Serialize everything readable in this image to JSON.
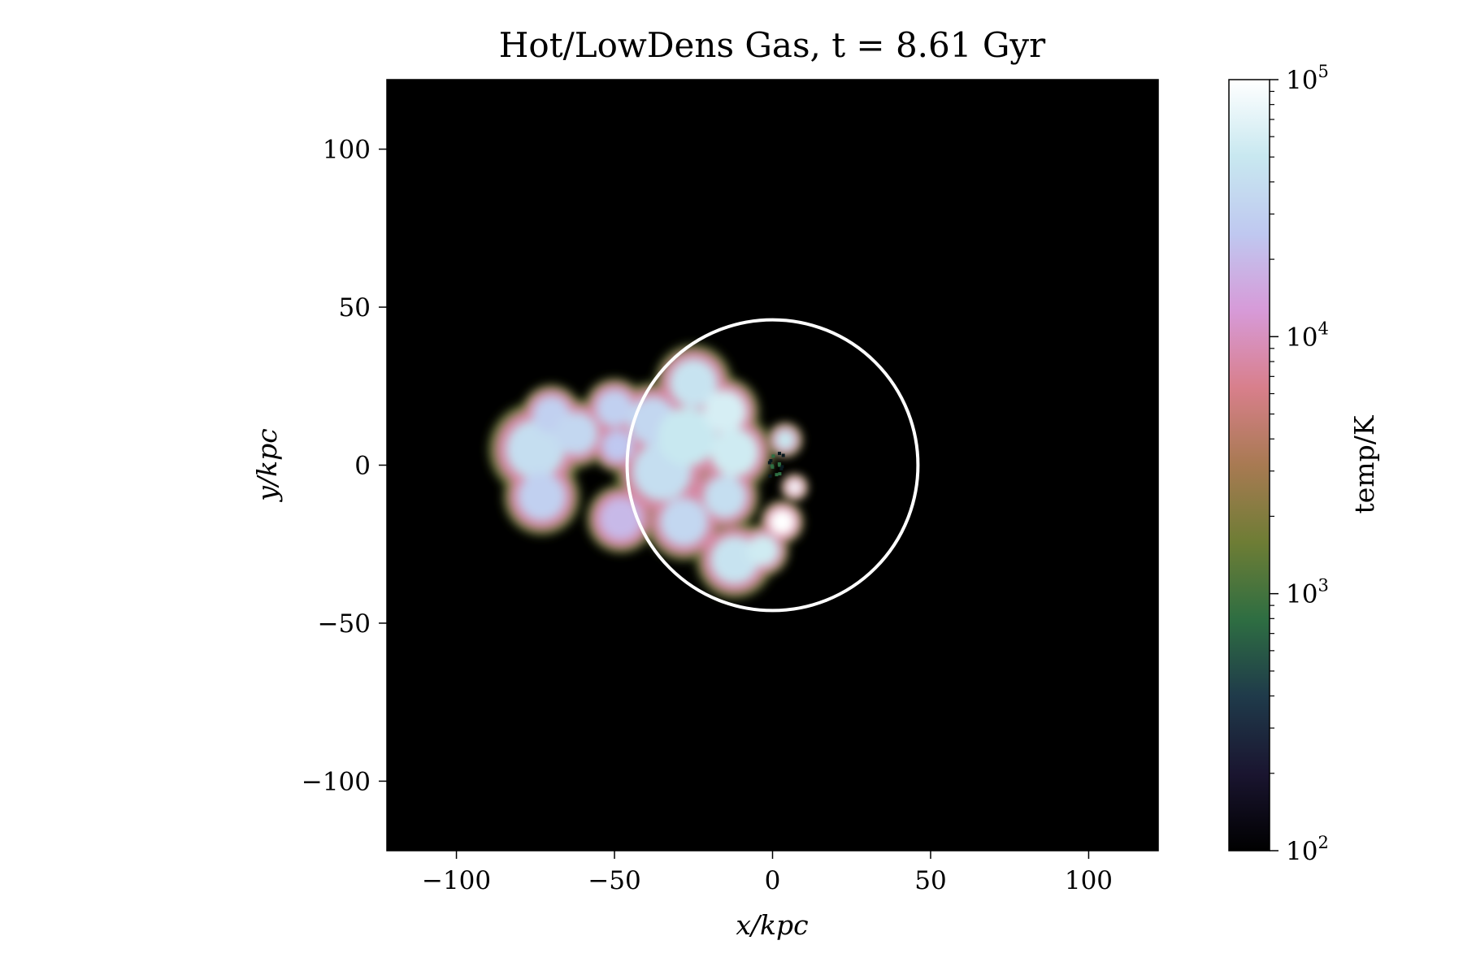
{
  "chart_data": {
    "type": "heatmap",
    "title": "Hot/LowDens Gas, t = 8.61 Gyr",
    "xlabel": "x/kpc",
    "ylabel": "y/kpc",
    "xlim": [
      -122,
      122
    ],
    "ylim": [
      -122,
      122
    ],
    "x_ticks": [
      -100,
      -50,
      0,
      50,
      100
    ],
    "y_ticks": [
      -100,
      -50,
      0,
      50,
      100
    ],
    "x_tick_labels": [
      "−100",
      "−50",
      "0",
      "50",
      "100"
    ],
    "y_tick_labels": [
      "−100",
      "−50",
      "0",
      "50",
      "100"
    ],
    "background_color": "#000000",
    "circle": {
      "center": [
        0,
        0
      ],
      "radius": 46,
      "color": "#ffffff"
    },
    "colorbar": {
      "label": "temp/K",
      "scale": "log",
      "range": [
        100,
        100000
      ],
      "tick_values": [
        100,
        1000,
        10000,
        100000
      ],
      "tick_labels": [
        {
          "base": "10",
          "exp": "2"
        },
        {
          "base": "10",
          "exp": "3"
        },
        {
          "base": "10",
          "exp": "4"
        },
        {
          "base": "10",
          "exp": "5"
        }
      ],
      "colormap": [
        "#000000",
        "#1a1530",
        "#1f3a4a",
        "#2e6e42",
        "#6e7d35",
        "#a87a52",
        "#d87f8b",
        "#d79ad8",
        "#bfc8f0",
        "#c8e8f0",
        "#ffffff"
      ]
    },
    "gas_clumps": [
      {
        "x": -75,
        "y": 5,
        "r": 11,
        "temp": 40000
      },
      {
        "x": -70,
        "y": 16,
        "r": 7,
        "temp": 30000
      },
      {
        "x": -62,
        "y": 10,
        "r": 8,
        "temp": 35000
      },
      {
        "x": -73,
        "y": -10,
        "r": 9,
        "temp": 30000
      },
      {
        "x": -50,
        "y": 18,
        "r": 7,
        "temp": 30000
      },
      {
        "x": -49,
        "y": 6,
        "r": 6,
        "temp": 25000
      },
      {
        "x": -48,
        "y": -17,
        "r": 8,
        "temp": 20000
      },
      {
        "x": -38,
        "y": 14,
        "r": 9,
        "temp": 35000
      },
      {
        "x": -35,
        "y": -2,
        "r": 11,
        "temp": 40000
      },
      {
        "x": -25,
        "y": 26,
        "r": 9,
        "temp": 45000
      },
      {
        "x": -27,
        "y": 9,
        "r": 11,
        "temp": 50000
      },
      {
        "x": -15,
        "y": 17,
        "r": 8,
        "temp": 60000
      },
      {
        "x": -12,
        "y": 4,
        "r": 9,
        "temp": 55000
      },
      {
        "x": -28,
        "y": -18,
        "r": 9,
        "temp": 35000
      },
      {
        "x": -15,
        "y": -10,
        "r": 8,
        "temp": 40000
      },
      {
        "x": 4,
        "y": 8,
        "r": 4,
        "temp": 50000
      },
      {
        "x": -12,
        "y": -30,
        "r": 9,
        "temp": 45000
      },
      {
        "x": -3,
        "y": -27,
        "r": 6,
        "temp": 55000
      },
      {
        "x": 3,
        "y": -18,
        "r": 5,
        "temp": 100000
      },
      {
        "x": 7,
        "y": -7,
        "r": 3,
        "temp": 90000
      }
    ]
  }
}
